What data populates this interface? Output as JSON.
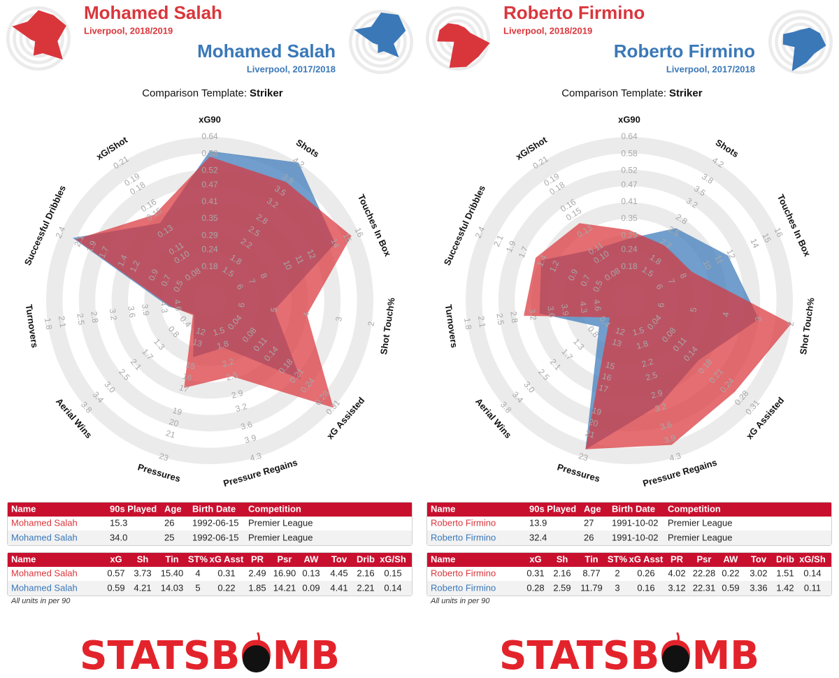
{
  "template_label": "Comparison Template:",
  "template": "Striker",
  "footnote": "All units in per 90",
  "logo": "STATSBOMB",
  "chart_data": [
    {
      "type": "radar",
      "series": [
        {
          "name": "Mohamed Salah",
          "subtitle": "Liverpool, 2018/2019",
          "color": "#d9363c",
          "values": [
            0.57,
            3.73,
            15.4,
            4,
            0.31,
            2.49,
            16.9,
            0.13,
            4.45,
            2.16,
            0.15
          ]
        },
        {
          "name": "Mohamed Salah",
          "subtitle": "Liverpool, 2017/2018",
          "color": "#3a78b8",
          "values": [
            0.59,
            4.21,
            14.03,
            5,
            0.22,
            1.85,
            14.21,
            0.09,
            4.41,
            2.21,
            0.14
          ]
        }
      ],
      "axes": [
        {
          "name": "xG90",
          "lim": [
            0.06,
            0.64
          ],
          "ticks": [
            0.18,
            0.24,
            0.29,
            0.35,
            0.41,
            0.47,
            0.52,
            0.58,
            0.64
          ]
        },
        {
          "name": "Shots",
          "lim": [
            0.8,
            4.2
          ],
          "ticks": [
            1.5,
            1.8,
            2.2,
            2.5,
            2.8,
            3.2,
            3.5,
            3.8,
            4.2
          ]
        },
        {
          "name": "Touches In Box",
          "lim": [
            3.5,
            16
          ],
          "ticks": [
            6,
            7,
            8,
            10,
            11,
            12,
            14,
            15,
            16
          ]
        },
        {
          "name": "Shot Touch%",
          "lim": [
            7,
            2
          ],
          "ticks": [
            6,
            5,
            4,
            3,
            2
          ]
        },
        {
          "name": "xG Assisted",
          "lim": [
            -0.03,
            0.31
          ],
          "ticks": [
            0.04,
            0.08,
            0.11,
            0.14,
            0.18,
            0.21,
            0.24,
            0.28,
            0.31
          ]
        },
        {
          "name": "Pressure Regains",
          "lim": [
            0.8,
            4.3
          ],
          "ticks": [
            1.5,
            1.8,
            2.2,
            2.5,
            2.9,
            3.2,
            3.6,
            3.9,
            4.3
          ]
        },
        {
          "name": "Pressures",
          "lim": [
            9.25,
            23
          ],
          "ticks": [
            12,
            13,
            15,
            16,
            17,
            19,
            20,
            21,
            23
          ]
        },
        {
          "name": "Aerial Wins",
          "lim": [
            -0.45,
            3.8
          ],
          "ticks": [
            0.4,
            0.8,
            1.3,
            1.7,
            2.1,
            2.5,
            {
              "value": 3,
              "label": "3.0"
            },
            3.4,
            3.8
          ]
        },
        {
          "name": "Turnovers",
          "lim": [
            5.3,
            1.8
          ],
          "ticks": [
            4.6,
            4.3,
            3.9,
            3.6,
            3.2,
            2.8,
            2.5,
            2.1,
            1.8
          ]
        },
        {
          "name": "Successful Dribbles",
          "lim": [
            0,
            2.4
          ],
          "ticks": [
            0.5,
            0.7,
            0.9,
            1.2,
            1.4,
            1.7,
            1.9,
            2.1,
            2.4
          ]
        },
        {
          "name": "xG/Shot",
          "lim": [
            0.05,
            0.21
          ],
          "ticks": [
            0.08,
            {
              "value": 0.1,
              "label": "0.10"
            },
            0.11,
            0.13,
            0.15,
            0.16,
            0.18,
            0.19,
            0.21
          ]
        }
      ],
      "tables": [
        {
          "columns": [
            "Name",
            "90s Played",
            "Age",
            "Birth Date",
            "Competition"
          ],
          "rows": [
            [
              "Mohamed Salah",
              "15.3",
              "26",
              "1992-06-15",
              "Premier League"
            ],
            [
              "Mohamed Salah",
              "34.0",
              "25",
              "1992-06-15",
              "Premier League"
            ]
          ]
        },
        {
          "columns": [
            "Name",
            "xG",
            "Sh",
            "Tin",
            "ST%",
            "xG Asst",
            "PR",
            "Psr",
            "AW",
            "Tov",
            "Drib",
            "xG/Sh"
          ],
          "rows": [
            [
              "Mohamed Salah",
              "0.57",
              "3.73",
              "15.40",
              "4",
              "0.31",
              "2.49",
              "16.90",
              "0.13",
              "4.45",
              "2.16",
              "0.15"
            ],
            [
              "Mohamed Salah",
              "0.59",
              "4.21",
              "14.03",
              "5",
              "0.22",
              "1.85",
              "14.21",
              "0.09",
              "4.41",
              "2.21",
              "0.14"
            ]
          ]
        }
      ]
    },
    {
      "type": "radar",
      "series": [
        {
          "name": "Roberto Firmino",
          "subtitle": "Liverpool, 2018/2019",
          "color": "#d9363c",
          "values": [
            0.31,
            2.16,
            8.77,
            2,
            0.26,
            4.02,
            22.28,
            0.22,
            3.02,
            1.51,
            0.14
          ]
        },
        {
          "name": "Roberto Firmino",
          "subtitle": "Liverpool, 2017/2018",
          "color": "#3a78b8",
          "values": [
            0.28,
            2.59,
            11.79,
            3,
            0.16,
            3.12,
            22.31,
            0.59,
            3.36,
            1.42,
            0.11
          ]
        }
      ],
      "axes": [
        {
          "name": "xG90",
          "lim": [
            0.06,
            0.64
          ],
          "ticks": [
            0.18,
            0.24,
            0.29,
            0.35,
            0.41,
            0.47,
            0.52,
            0.58,
            0.64
          ]
        },
        {
          "name": "Shots",
          "lim": [
            0.8,
            4.2
          ],
          "ticks": [
            1.5,
            1.8,
            2.2,
            2.5,
            2.8,
            3.2,
            3.5,
            3.8,
            4.2
          ]
        },
        {
          "name": "Touches In Box",
          "lim": [
            3.5,
            16
          ],
          "ticks": [
            6,
            7,
            8,
            10,
            11,
            12,
            14,
            15,
            16
          ]
        },
        {
          "name": "Shot Touch%",
          "lim": [
            7,
            2
          ],
          "ticks": [
            6,
            5,
            4,
            3,
            2
          ]
        },
        {
          "name": "xG Assisted",
          "lim": [
            -0.03,
            0.31
          ],
          "ticks": [
            0.04,
            0.08,
            0.11,
            0.14,
            0.18,
            0.21,
            0.24,
            0.28,
            0.31
          ]
        },
        {
          "name": "Pressure Regains",
          "lim": [
            0.8,
            4.3
          ],
          "ticks": [
            1.5,
            1.8,
            2.2,
            2.5,
            2.9,
            3.2,
            3.6,
            3.9,
            4.3
          ]
        },
        {
          "name": "Pressures",
          "lim": [
            9.25,
            23
          ],
          "ticks": [
            12,
            13,
            15,
            16,
            17,
            19,
            20,
            21,
            23
          ]
        },
        {
          "name": "Aerial Wins",
          "lim": [
            -0.45,
            3.8
          ],
          "ticks": [
            0.4,
            0.8,
            1.3,
            1.7,
            2.1,
            2.5,
            {
              "value": 3,
              "label": "3.0"
            },
            3.4,
            3.8
          ]
        },
        {
          "name": "Turnovers",
          "lim": [
            5.3,
            1.8
          ],
          "ticks": [
            4.6,
            4.3,
            3.9,
            3.6,
            3.2,
            2.8,
            2.5,
            2.1,
            1.8
          ]
        },
        {
          "name": "Successful Dribbles",
          "lim": [
            0,
            2.4
          ],
          "ticks": [
            0.5,
            0.7,
            0.9,
            1.2,
            1.4,
            1.7,
            1.9,
            2.1,
            2.4
          ]
        },
        {
          "name": "xG/Shot",
          "lim": [
            0.05,
            0.21
          ],
          "ticks": [
            0.08,
            {
              "value": 0.1,
              "label": "0.10"
            },
            0.11,
            0.13,
            0.15,
            0.16,
            0.18,
            0.19,
            0.21
          ]
        }
      ],
      "tables": [
        {
          "columns": [
            "Name",
            "90s Played",
            "Age",
            "Birth Date",
            "Competition"
          ],
          "rows": [
            [
              "Roberto Firmino",
              "13.9",
              "27",
              "1991-10-02",
              "Premier League"
            ],
            [
              "Roberto Firmino",
              "32.4",
              "26",
              "1991-10-02",
              "Premier League"
            ]
          ]
        },
        {
          "columns": [
            "Name",
            "xG",
            "Sh",
            "Tin",
            "ST%",
            "xG Asst",
            "PR",
            "Psr",
            "AW",
            "Tov",
            "Drib",
            "xG/Sh"
          ],
          "rows": [
            [
              "Roberto Firmino",
              "0.31",
              "2.16",
              "8.77",
              "2",
              "0.26",
              "4.02",
              "22.28",
              "0.22",
              "3.02",
              "1.51",
              "0.14"
            ],
            [
              "Roberto Firmino",
              "0.28",
              "2.59",
              "11.79",
              "3",
              "0.16",
              "3.12",
              "22.31",
              "0.59",
              "3.36",
              "1.42",
              "0.11"
            ]
          ]
        }
      ]
    }
  ]
}
